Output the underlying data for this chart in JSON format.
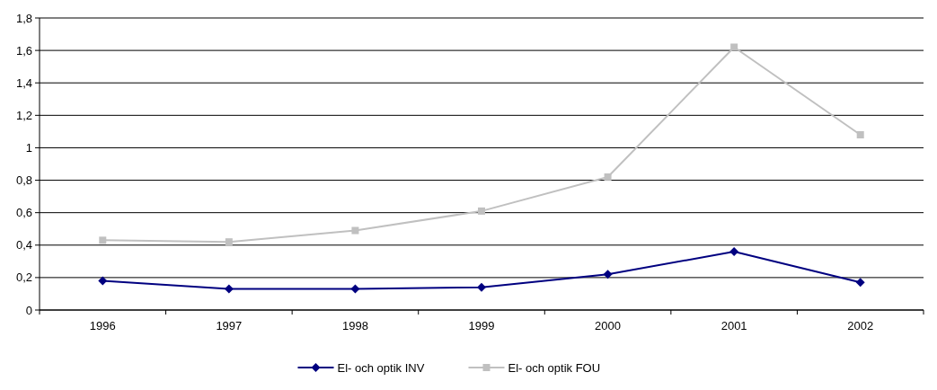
{
  "chart_data": {
    "type": "line",
    "categories": [
      "1996",
      "1997",
      "1998",
      "1999",
      "2000",
      "2001",
      "2002"
    ],
    "series": [
      {
        "name": "El- och optik INV",
        "color": "#000080",
        "marker": "diamond",
        "values": [
          0.18,
          0.13,
          0.13,
          0.14,
          0.22,
          0.36,
          0.17
        ]
      },
      {
        "name": "El- och optik FOU",
        "color": "#c0c0c0",
        "marker": "square",
        "values": [
          0.43,
          0.42,
          0.49,
          0.61,
          0.82,
          1.62,
          1.08
        ]
      }
    ],
    "ylim": [
      0,
      1.8
    ],
    "yticks": [
      0,
      {
        "value": 0.2,
        "label": "0,2"
      },
      {
        "value": 0.4,
        "label": "0,4"
      },
      {
        "value": 0.6,
        "label": "0,6"
      },
      {
        "value": 0.8,
        "label": "0,8"
      },
      1,
      {
        "value": 1.2,
        "label": "1,2"
      },
      {
        "value": 1.4,
        "label": "1,4"
      },
      {
        "value": 1.6,
        "label": "1,6"
      },
      {
        "value": 1.8,
        "label": "1,8"
      }
    ],
    "grid": "y",
    "legend": "bottom",
    "line_style": "solid"
  }
}
